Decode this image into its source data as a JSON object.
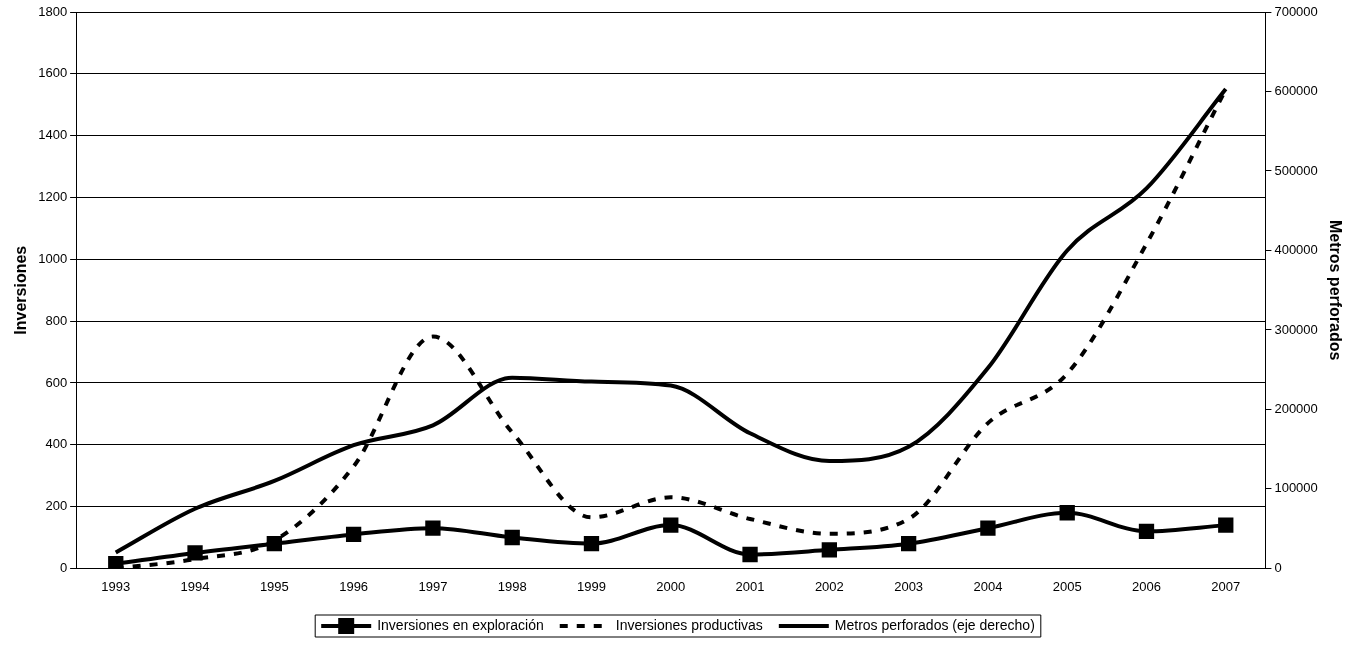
{
  "chart_data": {
    "type": "line",
    "ylabel": "Inversiones",
    "y2label": "Metros perforados",
    "categories": [
      "1993",
      "1994",
      "1995",
      "1996",
      "1997",
      "1998",
      "1999",
      "2000",
      "2001",
      "2002",
      "2003",
      "2004",
      "2005",
      "2006",
      "2007"
    ],
    "series": [
      {
        "name": "Inversiones en exploración",
        "color": "#000000",
        "marker": "square",
        "line_style": "solid",
        "values": [
          15,
          50,
          80,
          110,
          130,
          100,
          80,
          140,
          45,
          60,
          80,
          130,
          180,
          120,
          140
        ]
      },
      {
        "name": "Inversiones productivas",
        "color": "#000000",
        "marker": "none",
        "line_style": "dashed",
        "values": [
          0,
          30,
          90,
          330,
          750,
          440,
          165,
          230,
          160,
          112,
          160,
          470,
          630,
          1050,
          1550
        ]
      },
      {
        "name": "Metros perforados (eje derecho)",
        "color": "#000000",
        "marker": "none",
        "line_style": "solid",
        "axis": "y2",
        "values": [
          20000,
          75000,
          110000,
          155000,
          180000,
          240000,
          235000,
          230000,
          170000,
          135000,
          153000,
          252000,
          400000,
          478000,
          603000
        ]
      }
    ],
    "ylim": [
      0,
      1800
    ],
    "yticks": [
      0,
      200,
      400,
      600,
      800,
      1000,
      1200,
      1400,
      1600,
      1800
    ],
    "y2lim": [
      0,
      700000
    ],
    "y2ticks": [
      0,
      100000,
      200000,
      300000,
      400000,
      500000,
      600000,
      700000
    ],
    "grid": "y",
    "legend": "bottom"
  }
}
